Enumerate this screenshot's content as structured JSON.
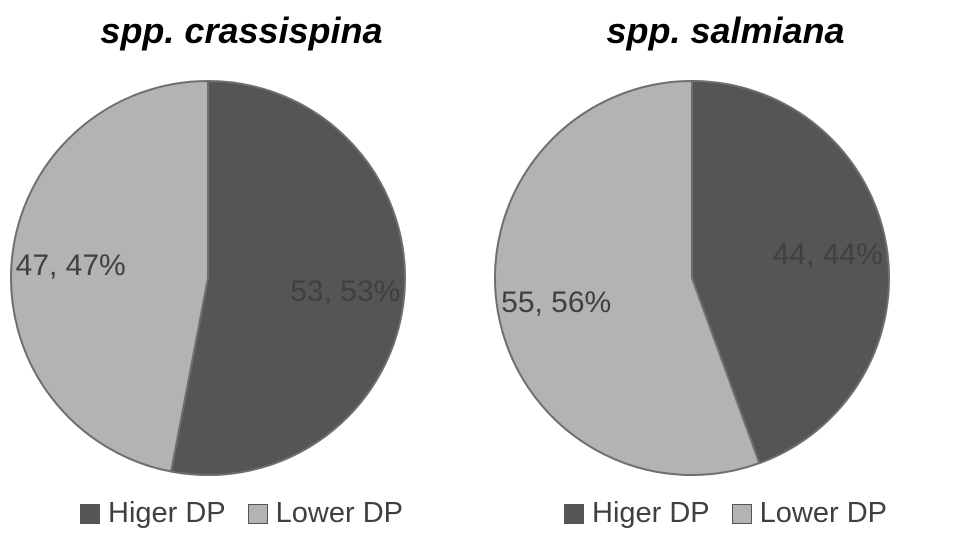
{
  "chart_data": [
    {
      "type": "pie",
      "title": "spp. crassispina",
      "categories": [
        "Higer DP",
        "Lower DP"
      ],
      "values": [
        53,
        47
      ],
      "data_labels": [
        "53, 53%",
        "47, 47%"
      ],
      "colors": [
        "#555555",
        "#b3b3b3"
      ],
      "legend": "bottom"
    },
    {
      "type": "pie",
      "title": "spp. salmiana",
      "categories": [
        "Higer DP",
        "Lower DP"
      ],
      "values": [
        44,
        55
      ],
      "data_labels": [
        "44, 44%",
        "55, 56%"
      ],
      "colors": [
        "#555555",
        "#b3b3b3"
      ],
      "legend": "bottom"
    }
  ]
}
